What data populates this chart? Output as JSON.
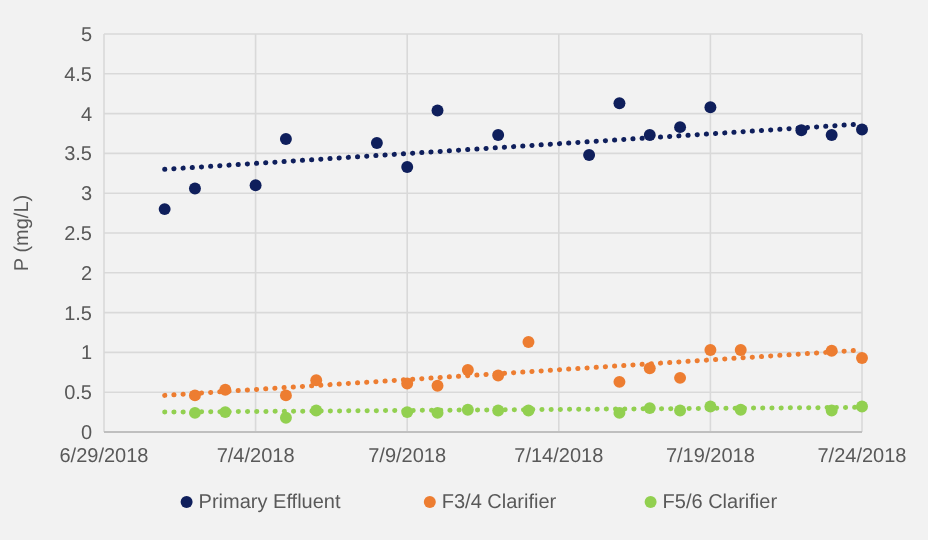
{
  "chart_data": {
    "type": "scatter",
    "ylabel": "P (mg/L)",
    "xlim": [
      "2018-06-29",
      "2018-07-24"
    ],
    "xticks": [
      {
        "value": "2018-06-29",
        "label": "6/29/2018"
      },
      {
        "value": "2018-07-04",
        "label": "7/4/2018"
      },
      {
        "value": "2018-07-09",
        "label": "7/9/2018"
      },
      {
        "value": "2018-07-14",
        "label": "7/14/2018"
      },
      {
        "value": "2018-07-19",
        "label": "7/19/2018"
      },
      {
        "value": "2018-07-24",
        "label": "7/24/2018"
      }
    ],
    "ylim": [
      0,
      5
    ],
    "yticks": [
      0,
      0.5,
      1,
      1.5,
      2,
      2.5,
      3,
      3.5,
      4,
      4.5,
      5
    ],
    "grid": true,
    "legend": "bottom",
    "marker": "circle",
    "series": [
      {
        "name": "Primary Effluent",
        "color": "#0f1f5c",
        "x": [
          "2018-07-01",
          "2018-07-02",
          "2018-07-04",
          "2018-07-05",
          "2018-07-08",
          "2018-07-09",
          "2018-07-10",
          "2018-07-12",
          "2018-07-15",
          "2018-07-16",
          "2018-07-17",
          "2018-07-18",
          "2018-07-19",
          "2018-07-22",
          "2018-07-23",
          "2018-07-24"
        ],
        "values": [
          2.8,
          3.06,
          3.1,
          3.68,
          3.63,
          3.33,
          4.04,
          3.73,
          3.48,
          4.13,
          3.73,
          3.83,
          4.08,
          3.79,
          3.73,
          3.8
        ]
      },
      {
        "name": "F3/4 Clarifier",
        "color": "#ed7d31",
        "x": [
          "2018-07-02",
          "2018-07-03",
          "2018-07-05",
          "2018-07-06",
          "2018-07-09",
          "2018-07-10",
          "2018-07-11",
          "2018-07-12",
          "2018-07-13",
          "2018-07-16",
          "2018-07-17",
          "2018-07-18",
          "2018-07-19",
          "2018-07-20",
          "2018-07-23",
          "2018-07-24"
        ],
        "values": [
          0.46,
          0.53,
          0.46,
          0.65,
          0.61,
          0.58,
          0.78,
          0.71,
          1.13,
          0.63,
          0.8,
          0.68,
          1.03,
          1.03,
          1.02,
          0.93
        ]
      },
      {
        "name": "F5/6 Clarifier",
        "color": "#92d050",
        "x": [
          "2018-07-02",
          "2018-07-03",
          "2018-07-05",
          "2018-07-06",
          "2018-07-09",
          "2018-07-10",
          "2018-07-11",
          "2018-07-12",
          "2018-07-13",
          "2018-07-16",
          "2018-07-17",
          "2018-07-18",
          "2018-07-19",
          "2018-07-20",
          "2018-07-23",
          "2018-07-24"
        ],
        "values": [
          0.24,
          0.25,
          0.18,
          0.27,
          0.25,
          0.24,
          0.28,
          0.27,
          0.27,
          0.24,
          0.3,
          0.27,
          0.32,
          0.28,
          0.27,
          0.32
        ]
      },
      {
        "type": "line",
        "color": "#0f1f5c",
        "marker": "none",
        "line_style": "dotted",
        "x": [
          "2018-07-01",
          "2018-07-24"
        ],
        "values": [
          3.3,
          3.87
        ]
      },
      {
        "type": "line",
        "color": "#ed7d31",
        "marker": "none",
        "line_style": "dotted",
        "x": [
          "2018-07-01",
          "2018-07-24"
        ],
        "values": [
          0.46,
          1.03
        ]
      },
      {
        "type": "line",
        "color": "#92d050",
        "marker": "none",
        "line_style": "dotted",
        "x": [
          "2018-07-01",
          "2018-07-24"
        ],
        "values": [
          0.25,
          0.31
        ]
      }
    ]
  }
}
